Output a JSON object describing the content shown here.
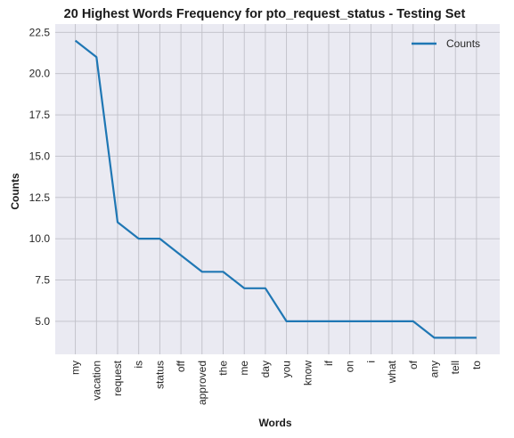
{
  "chart_data": {
    "type": "line",
    "title": "20 Highest Words Frequency for pto_request_status - Testing Set",
    "xlabel": "Words",
    "ylabel": "Counts",
    "categories": [
      "my",
      "vacation",
      "request",
      "is",
      "status",
      "off",
      "approved",
      "the",
      "me",
      "day",
      "you",
      "know",
      "if",
      "on",
      "i",
      "what",
      "of",
      "any",
      "tell",
      "to"
    ],
    "series": [
      {
        "name": "Counts",
        "values": [
          22,
          21,
          11,
          10,
          10,
          9,
          8,
          8,
          7,
          7,
          5,
          5,
          5,
          5,
          5,
          5,
          5,
          4,
          4,
          4
        ]
      }
    ],
    "ylim": [
      3.0,
      23.0
    ],
    "yticks": [
      "5.0",
      "7.5",
      "10.0",
      "12.5",
      "15.0",
      "17.5",
      "20.0",
      "22.5"
    ],
    "ytick_values": [
      5.0,
      7.5,
      10.0,
      12.5,
      15.0,
      17.5,
      20.0,
      22.5
    ],
    "grid": true,
    "legend_position": "top-right",
    "colors": {
      "line": "#1f77b4",
      "background": "#eaeaf2",
      "grid": "#c0c0c8"
    }
  }
}
